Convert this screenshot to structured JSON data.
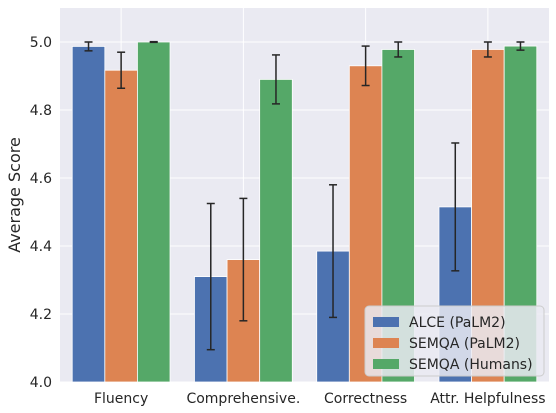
{
  "chart_data": {
    "type": "bar",
    "title": "",
    "xlabel": "",
    "ylabel": "Average Score",
    "ylim": [
      4.0,
      5.1
    ],
    "yticks": [
      4.0,
      4.2,
      4.4,
      4.6,
      4.8,
      5.0
    ],
    "categories": [
      "Fluency",
      "Comprehensive.",
      "Correctness",
      "Attr. Helpfulness"
    ],
    "grid": true,
    "legend_position": "bottom-right",
    "series": [
      {
        "name": "ALCE (PaLM2)",
        "color": "#4c72b0",
        "values": [
          4.987,
          4.31,
          4.385,
          4.515
        ],
        "errors": [
          0.013,
          0.215,
          0.195,
          0.188
        ]
      },
      {
        "name": "SEMQA (PaLM2)",
        "color": "#dd8452",
        "values": [
          4.917,
          4.36,
          4.93,
          4.978
        ],
        "errors": [
          0.053,
          0.18,
          0.058,
          0.022
        ]
      },
      {
        "name": "SEMQA (Humans)",
        "color": "#55a868",
        "values": [
          5.0,
          4.89,
          4.978,
          4.988
        ],
        "errors": [
          0.001,
          0.072,
          0.022,
          0.012
        ]
      }
    ]
  }
}
